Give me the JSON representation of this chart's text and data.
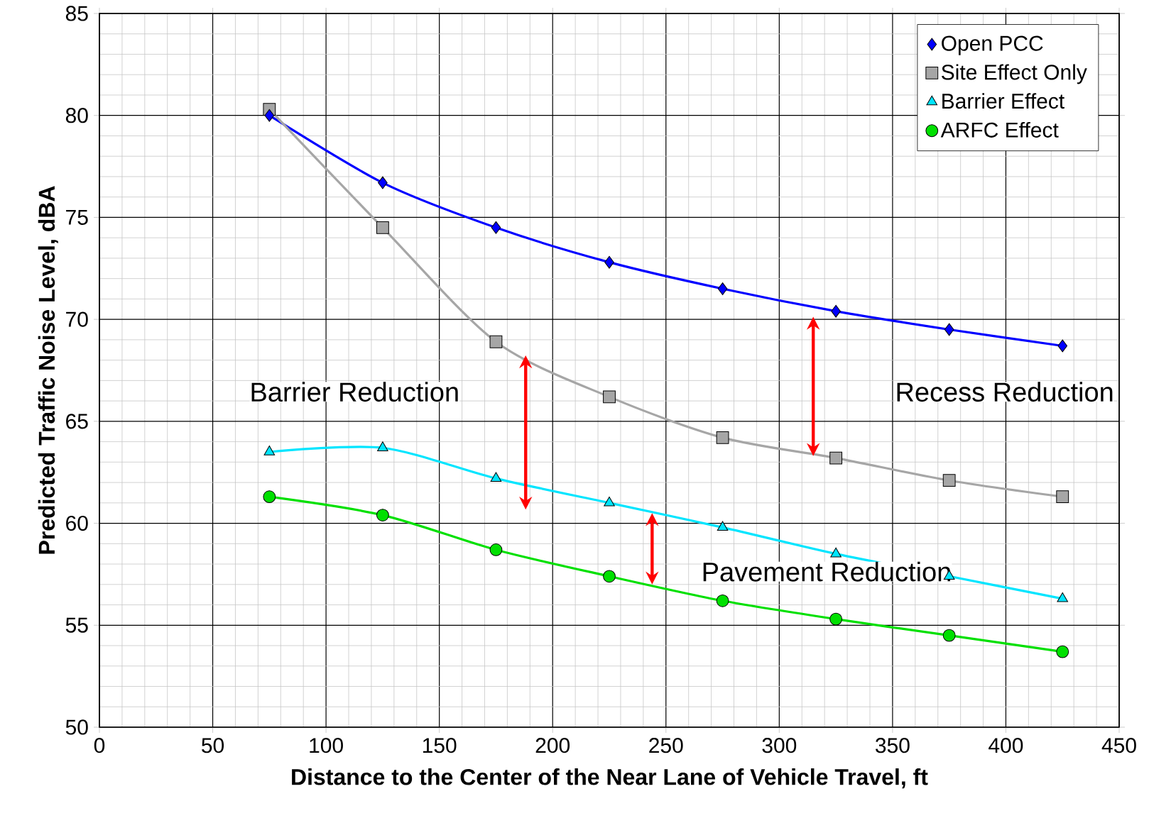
{
  "chart_data": {
    "type": "line",
    "xlabel": "Distance to the Center of the Near Lane of Vehicle Travel, ft",
    "ylabel": "Predicted Traffic Noise Level, dBA",
    "x": [
      75,
      125,
      175,
      225,
      275,
      325,
      375,
      425
    ],
    "series": [
      {
        "name": "Open PCC",
        "color": "#0000ff",
        "marker": "diamond",
        "values": [
          80.0,
          76.7,
          74.5,
          72.8,
          71.5,
          70.4,
          69.5,
          68.7
        ]
      },
      {
        "name": "Site Effect Only",
        "color": "#a6a6a6",
        "marker": "square",
        "values": [
          80.3,
          74.5,
          68.9,
          66.2,
          64.2,
          63.2,
          62.1,
          61.3
        ]
      },
      {
        "name": "Barrier Effect",
        "color": "#00e5ff",
        "marker": "triangle",
        "values": [
          63.5,
          63.7,
          62.2,
          61.0,
          59.8,
          58.5,
          57.4,
          56.3
        ]
      },
      {
        "name": "ARFC Effect",
        "color": "#00e000",
        "marker": "circle",
        "values": [
          61.3,
          60.4,
          58.7,
          57.4,
          56.2,
          55.3,
          54.5,
          53.7
        ]
      }
    ],
    "xlim": [
      0,
      450
    ],
    "xticks": [
      0,
      50,
      100,
      150,
      200,
      250,
      300,
      350,
      400,
      450
    ],
    "ylim": [
      50,
      85
    ],
    "yticks": [
      50,
      55,
      60,
      65,
      70,
      75,
      80,
      85
    ],
    "grid": true,
    "legend": "top right",
    "annotations": [
      "Barrier Reduction",
      "Recess Reduction",
      "Pavement Reduction"
    ]
  }
}
